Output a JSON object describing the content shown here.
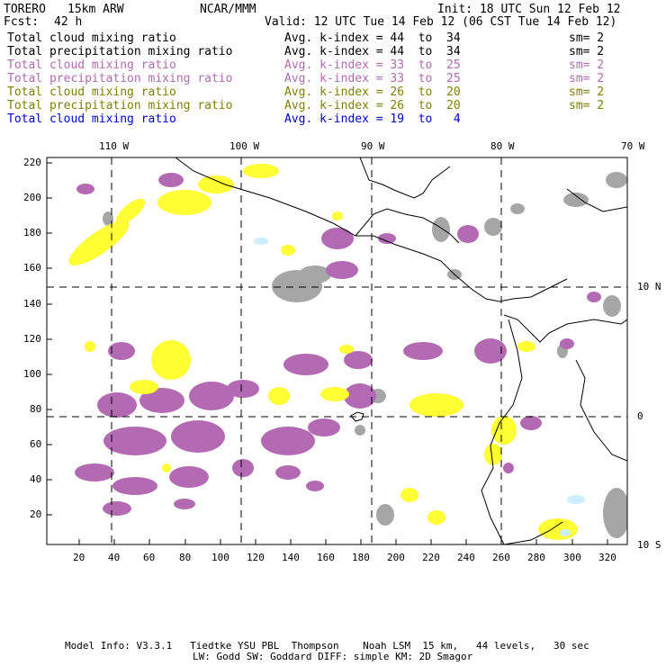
{
  "header": {
    "model": "TORERO",
    "resolution": "15km ARW",
    "center": "NCAR/MMM",
    "init": "Init: 18 UTC Sun 12 Feb 12",
    "fcst_label": "Fcst:",
    "fcst_value": "42 h",
    "valid": "Valid: 12 UTC Tue 14 Feb 12 (06 CST Tue 14 Feb 12)"
  },
  "legend": [
    {
      "field": "Total cloud mixing ratio",
      "avg_label": "Avg. k-index =",
      "from": "44",
      "to_word": "to",
      "to": "34",
      "sm": "sm= 2",
      "color": "#000000"
    },
    {
      "field": "Total precipitation mixing ratio",
      "avg_label": "Avg. k-index =",
      "from": "44",
      "to_word": "to",
      "to": "34",
      "sm": "sm= 2",
      "color": "#000000"
    },
    {
      "field": "Total cloud mixing ratio",
      "avg_label": "Avg. k-index =",
      "from": "33",
      "to_word": "to",
      "to": "25",
      "sm": "sm= 2",
      "color": "#b36ab3"
    },
    {
      "field": "Total precipitation mixing ratio",
      "avg_label": "Avg. k-index =",
      "from": "33",
      "to_word": "to",
      "to": "25",
      "sm": "sm= 2",
      "color": "#b36ab3"
    },
    {
      "field": "Total cloud mixing ratio",
      "avg_label": "Avg. k-index =",
      "from": "26",
      "to_word": "to",
      "to": "20",
      "sm": "sm= 2",
      "color": "#7f7f00"
    },
    {
      "field": "Total precipitation mixing ratio",
      "avg_label": "Avg. k-index =",
      "from": "26",
      "to_word": "to",
      "to": "20",
      "sm": "sm= 2",
      "color": "#7f7f00"
    },
    {
      "field": "Total cloud mixing ratio",
      "avg_label": "Avg. k-index =",
      "from": "19",
      "to_word": "to",
      "to": "4",
      "sm": "",
      "color": "#0000cc"
    }
  ],
  "map": {
    "lon_labels": [
      "110 W",
      "100 W",
      "90 W",
      "80 W",
      "70 W"
    ],
    "lat_labels": [
      "10 N",
      "0",
      "10 S"
    ],
    "y_ticks": [
      "220",
      "200",
      "180",
      "160",
      "140",
      "120",
      "100",
      "80",
      "60",
      "40",
      "20"
    ],
    "x_ticks": [
      "20",
      "40",
      "60",
      "80",
      "100",
      "120",
      "140",
      "160",
      "180",
      "200",
      "220",
      "240",
      "260",
      "280",
      "300",
      "320"
    ],
    "colors": {
      "gray": "#a6a6a6",
      "purple": "#b36ab3",
      "yellow": "#ffff33",
      "cyan": "#cceeff",
      "coast": "#000000"
    }
  },
  "footer": {
    "line1": "Model Info: V3.3.1   Tiedtke YSU PBL  Thompson    Noah LSM  15 km,   44 levels,   30 sec",
    "line2": "LW: Godd SW: Goddard DIFF: simple KM: 2D Smagor"
  }
}
